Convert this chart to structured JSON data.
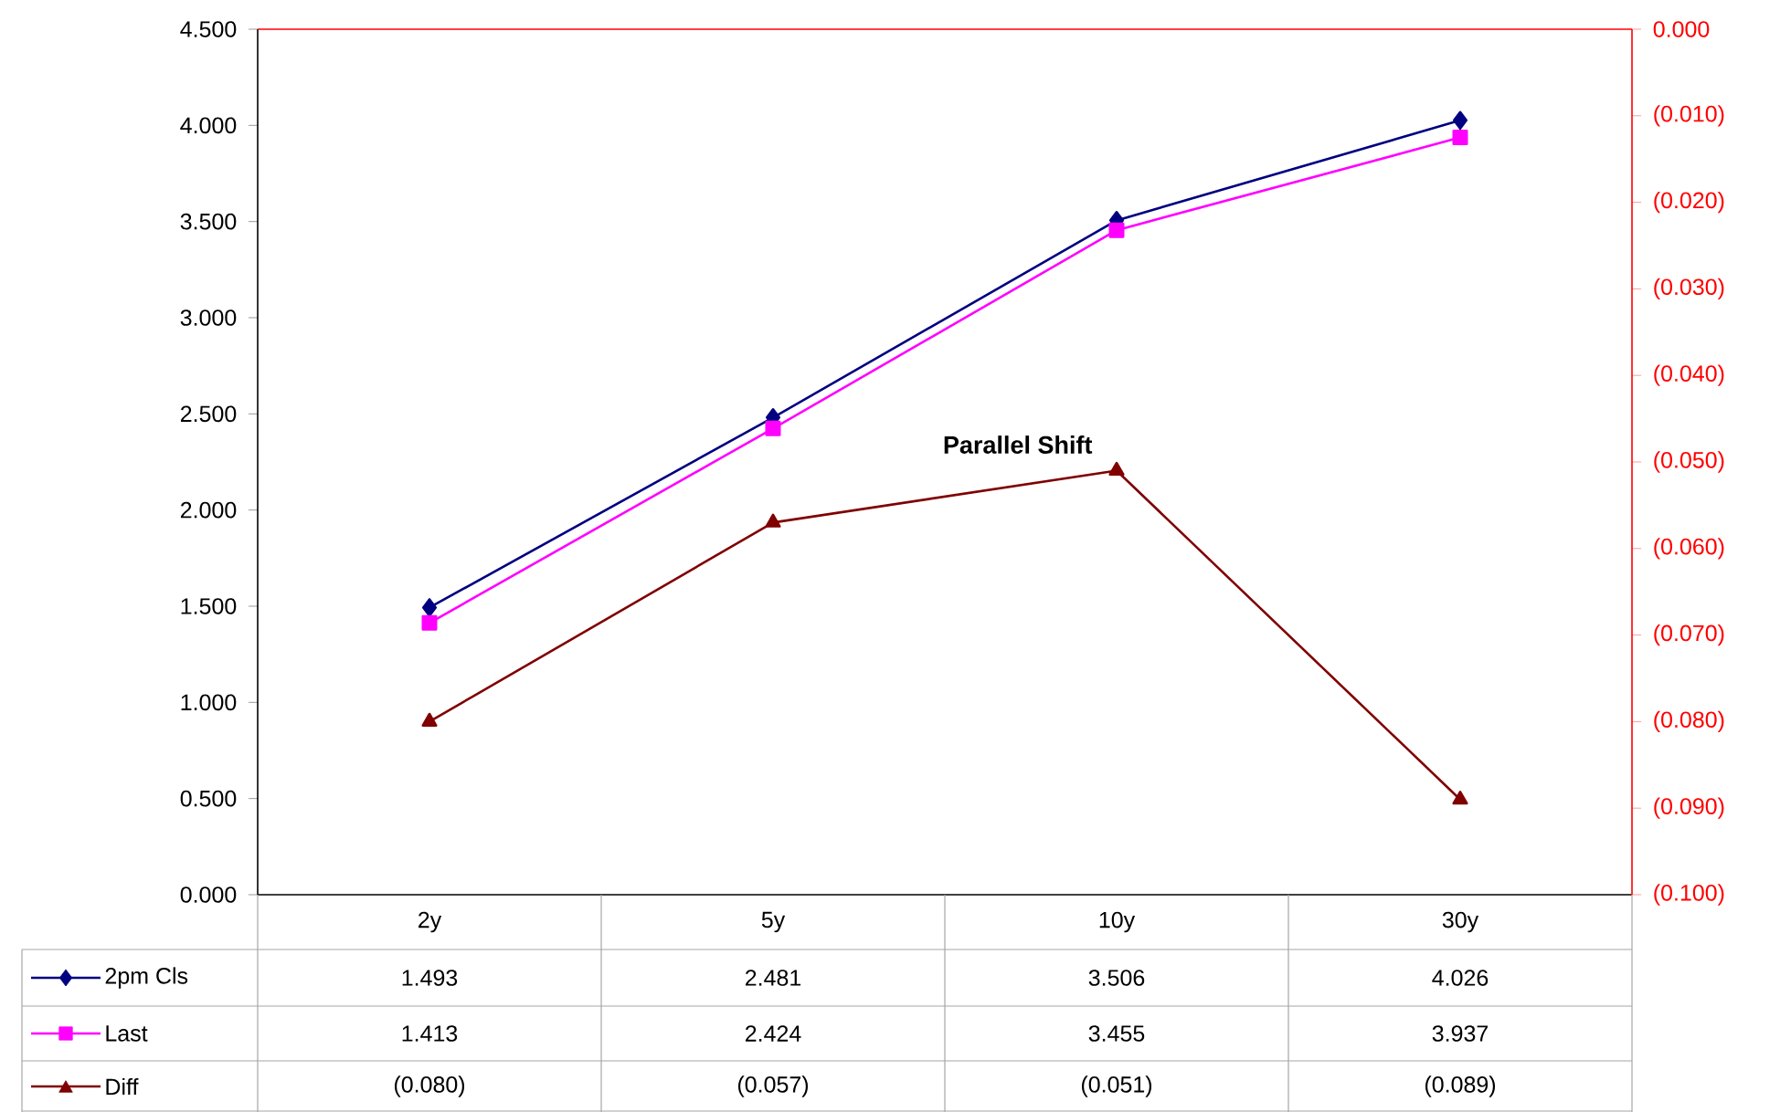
{
  "chart_data": {
    "type": "line",
    "categories": [
      "2y",
      "5y",
      "10y",
      "30y"
    ],
    "series": [
      {
        "name": "2pm Cls",
        "color": "#000080",
        "marker": "diamond",
        "values": [
          1.493,
          2.481,
          3.506,
          4.026
        ],
        "value_labels": [
          "1.493",
          "2.481",
          "3.506",
          "4.026"
        ]
      },
      {
        "name": "Last",
        "color": "#ff00ff",
        "marker": "square",
        "values": [
          1.413,
          2.424,
          3.455,
          3.937
        ],
        "value_labels": [
          "1.413",
          "2.424",
          "3.455",
          "3.937"
        ]
      },
      {
        "name": "Diff",
        "color": "#800000",
        "marker": "triangle",
        "axis": "y2",
        "values": [
          -0.08,
          -0.057,
          -0.051,
          -0.089
        ],
        "value_labels": [
          "(0.080)",
          "(0.057)",
          "(0.051)",
          "(0.089)"
        ]
      }
    ],
    "ylim": [
      0,
      4.5
    ],
    "yticks": [
      {
        "value": 0,
        "label": "0.000"
      },
      {
        "value": 0.5,
        "label": "0.500"
      },
      {
        "value": 1,
        "label": "1.000"
      },
      {
        "value": 1.5,
        "label": "1.500"
      },
      {
        "value": 2,
        "label": "2.000"
      },
      {
        "value": 2.5,
        "label": "2.500"
      },
      {
        "value": 3,
        "label": "3.000"
      },
      {
        "value": 3.5,
        "label": "3.500"
      },
      {
        "value": 4,
        "label": "4.000"
      },
      {
        "value": 4.5,
        "label": "4.500"
      }
    ],
    "y2lim": [
      -0.1,
      0
    ],
    "y2ticks": [
      {
        "value": -0.1,
        "label": "(0.100)"
      },
      {
        "value": -0.09,
        "label": "(0.090)"
      },
      {
        "value": -0.08,
        "label": "(0.080)"
      },
      {
        "value": -0.07,
        "label": "(0.070)"
      },
      {
        "value": -0.06,
        "label": "(0.060)"
      },
      {
        "value": -0.05,
        "label": "(0.050)"
      },
      {
        "value": -0.04,
        "label": "(0.040)"
      },
      {
        "value": -0.03,
        "label": "(0.030)"
      },
      {
        "value": -0.02,
        "label": "(0.020)"
      },
      {
        "value": -0.01,
        "label": "(0.010)"
      },
      {
        "value": 0,
        "label": "0.000"
      }
    ],
    "legend": "bottom left",
    "grid": false,
    "annotations": [
      "Parallel Shift"
    ]
  }
}
